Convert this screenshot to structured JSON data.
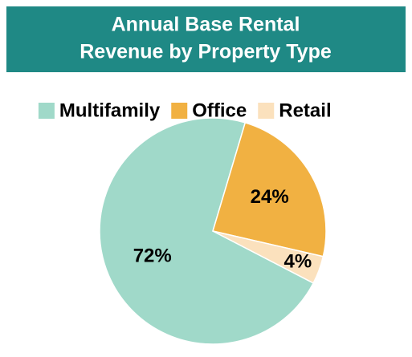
{
  "chart_data": {
    "type": "pie",
    "title": [
      "Annual Base Rental",
      "Revenue by Property Type"
    ],
    "categories": [
      "Multifamily",
      "Office",
      "Retail"
    ],
    "values": [
      72,
      24,
      4
    ],
    "value_labels": [
      "72%",
      "24%",
      "4%"
    ],
    "colors": [
      "#a0d9c9",
      "#f1b142",
      "#fbe1bd"
    ],
    "legend": "top"
  }
}
